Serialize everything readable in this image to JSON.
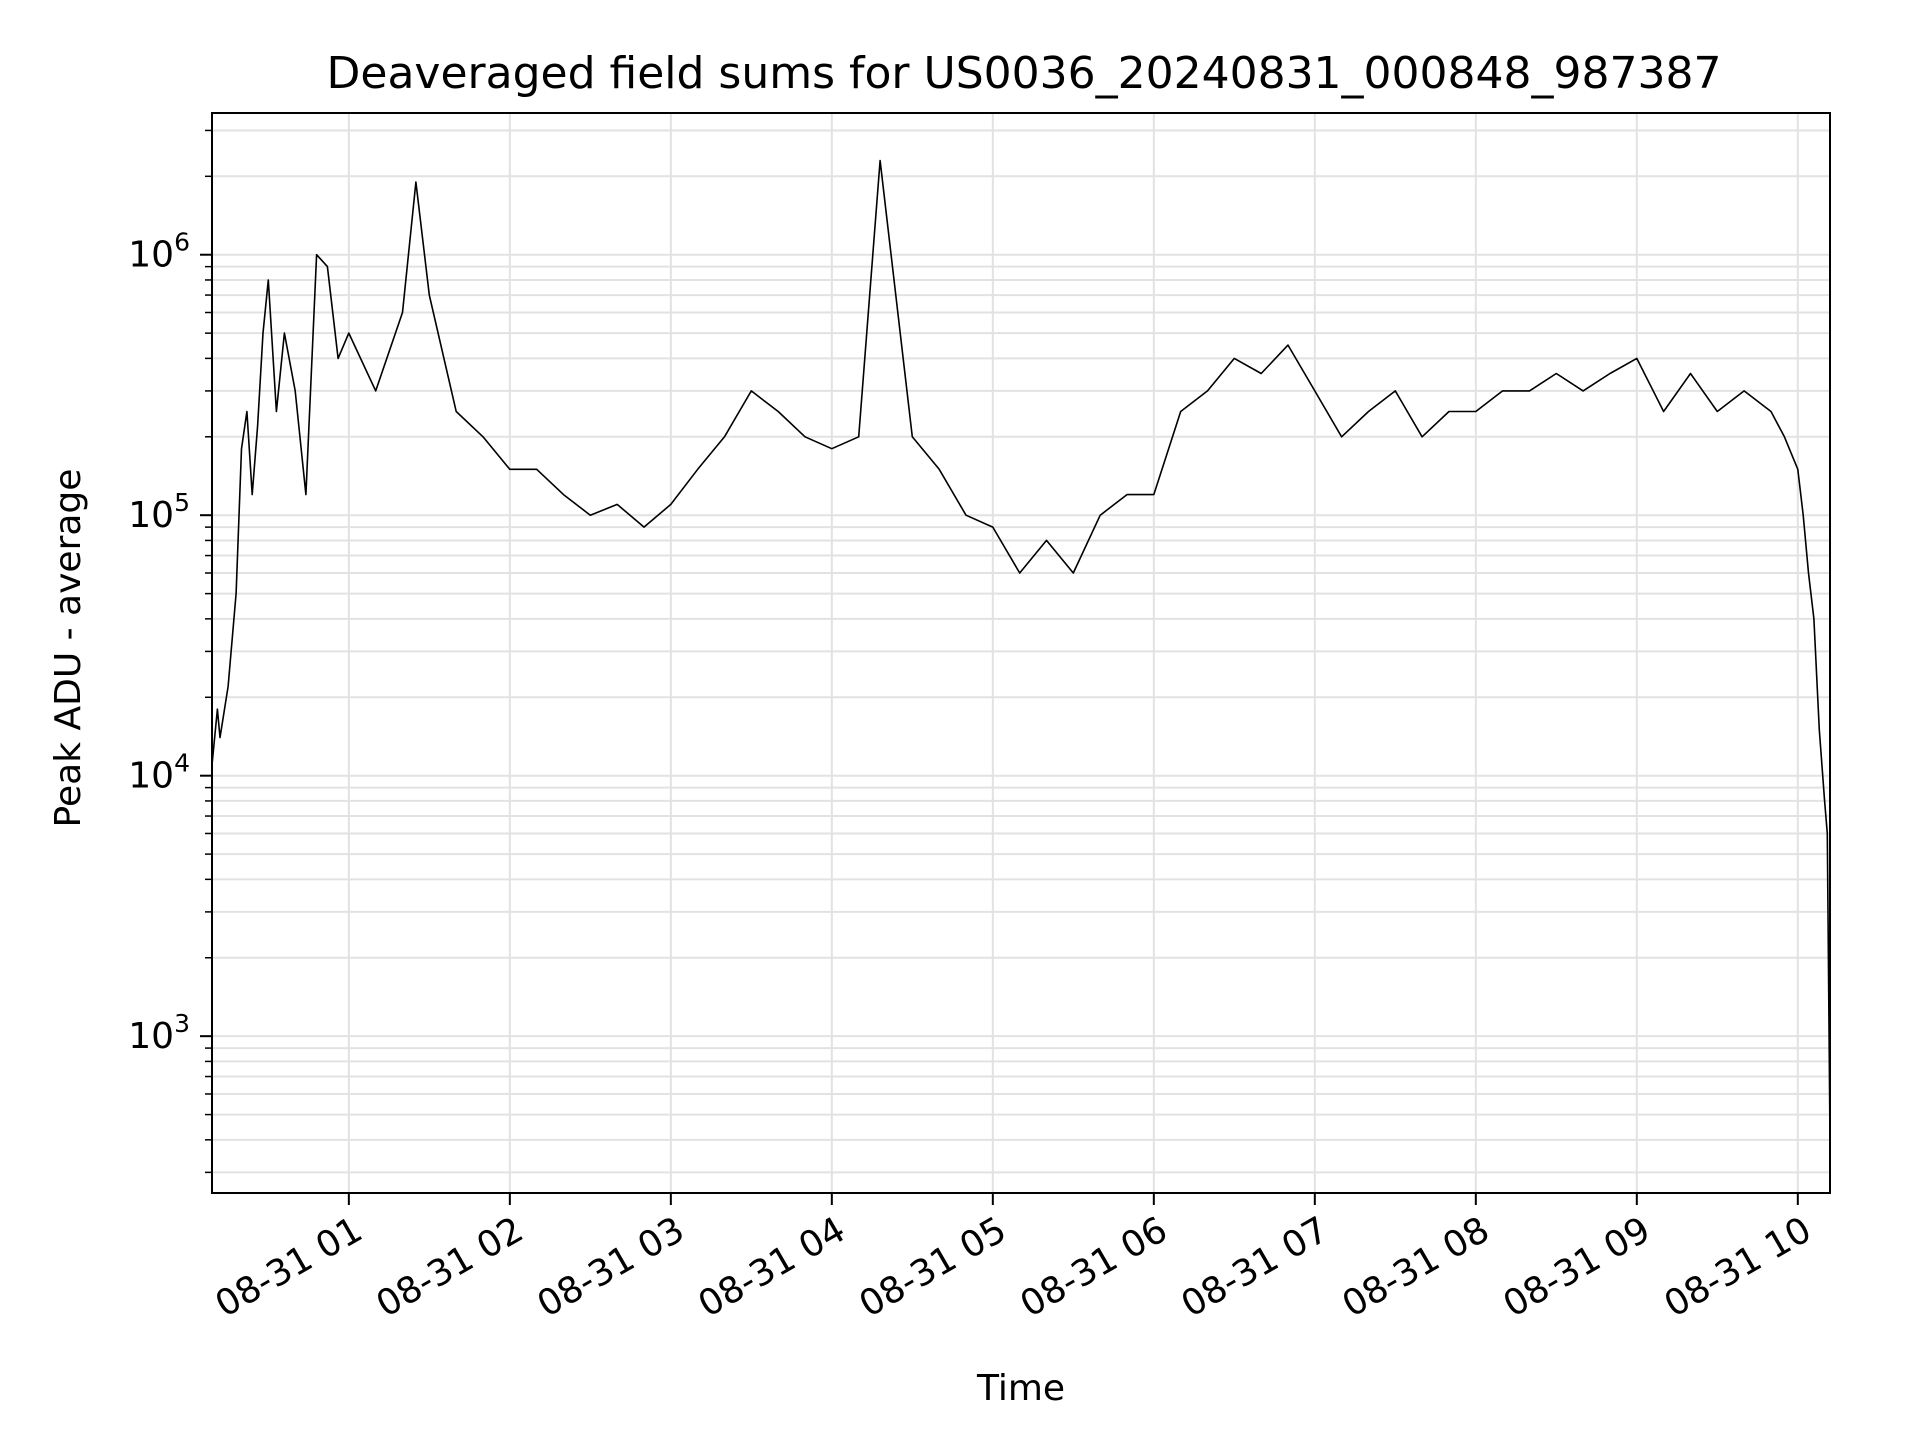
{
  "chart_data": {
    "type": "line",
    "title": "Deaveraged field sums for US0036_20240831_000848_987387",
    "xlabel": "Time",
    "ylabel": "Peak ADU - average",
    "yscale": "log",
    "ylim": [
      250,
      3500000
    ],
    "xlim": [
      "2024-08-31 00:09",
      "2024-08-31 10:12"
    ],
    "grid": true,
    "x_ticks": [
      {
        "value": "2024-08-31 01:00",
        "label": "08-31 01"
      },
      {
        "value": "2024-08-31 02:00",
        "label": "08-31 02"
      },
      {
        "value": "2024-08-31 03:00",
        "label": "08-31 03"
      },
      {
        "value": "2024-08-31 04:00",
        "label": "08-31 04"
      },
      {
        "value": "2024-08-31 05:00",
        "label": "08-31 05"
      },
      {
        "value": "2024-08-31 06:00",
        "label": "08-31 06"
      },
      {
        "value": "2024-08-31 07:00",
        "label": "08-31 07"
      },
      {
        "value": "2024-08-31 08:00",
        "label": "08-31 08"
      },
      {
        "value": "2024-08-31 09:00",
        "label": "08-31 09"
      },
      {
        "value": "2024-08-31 10:00",
        "label": "08-31 10"
      }
    ],
    "y_ticks": [
      {
        "value": 1000,
        "base": "10",
        "exp": "3"
      },
      {
        "value": 10000,
        "base": "10",
        "exp": "4"
      },
      {
        "value": 100000,
        "base": "10",
        "exp": "5"
      },
      {
        "value": 1000000,
        "base": "10",
        "exp": "6"
      }
    ],
    "series": [
      {
        "color": "#000000",
        "x": [
          "2024-08-31 00:09",
          "2024-08-31 00:11",
          "2024-08-31 00:12",
          "2024-08-31 00:15",
          "2024-08-31 00:18",
          "2024-08-31 00:20",
          "2024-08-31 00:22",
          "2024-08-31 00:24",
          "2024-08-31 00:26",
          "2024-08-31 00:28",
          "2024-08-31 00:30",
          "2024-08-31 00:33",
          "2024-08-31 00:36",
          "2024-08-31 00:40",
          "2024-08-31 00:44",
          "2024-08-31 00:48",
          "2024-08-31 00:52",
          "2024-08-31 00:56",
          "2024-08-31 01:00",
          "2024-08-31 01:10",
          "2024-08-31 01:20",
          "2024-08-31 01:25",
          "2024-08-31 01:30",
          "2024-08-31 01:40",
          "2024-08-31 01:50",
          "2024-08-31 02:00",
          "2024-08-31 02:10",
          "2024-08-31 02:20",
          "2024-08-31 02:30",
          "2024-08-31 02:40",
          "2024-08-31 02:50",
          "2024-08-31 03:00",
          "2024-08-31 03:10",
          "2024-08-31 03:20",
          "2024-08-31 03:30",
          "2024-08-31 03:40",
          "2024-08-31 03:50",
          "2024-08-31 04:00",
          "2024-08-31 04:10",
          "2024-08-31 04:18",
          "2024-08-31 04:30",
          "2024-08-31 04:40",
          "2024-08-31 04:50",
          "2024-08-31 05:00",
          "2024-08-31 05:10",
          "2024-08-31 05:20",
          "2024-08-31 05:30",
          "2024-08-31 05:40",
          "2024-08-31 05:50",
          "2024-08-31 06:00",
          "2024-08-31 06:10",
          "2024-08-31 06:20",
          "2024-08-31 06:30",
          "2024-08-31 06:40",
          "2024-08-31 06:50",
          "2024-08-31 07:00",
          "2024-08-31 07:10",
          "2024-08-31 07:20",
          "2024-08-31 07:30",
          "2024-08-31 07:40",
          "2024-08-31 07:50",
          "2024-08-31 08:00",
          "2024-08-31 08:10",
          "2024-08-31 08:20",
          "2024-08-31 08:30",
          "2024-08-31 08:40",
          "2024-08-31 08:50",
          "2024-08-31 09:00",
          "2024-08-31 09:10",
          "2024-08-31 09:20",
          "2024-08-31 09:30",
          "2024-08-31 09:40",
          "2024-08-31 09:50",
          "2024-08-31 09:55",
          "2024-08-31 10:00",
          "2024-08-31 10:02",
          "2024-08-31 10:04",
          "2024-08-31 10:06",
          "2024-08-31 10:08",
          "2024-08-31 10:10",
          "2024-08-31 10:11",
          "2024-08-31 10:12"
        ],
        "y": [
          11000,
          18000,
          14000,
          22000,
          50000,
          180000,
          250000,
          120000,
          220000,
          500000,
          800000,
          250000,
          500000,
          300000,
          120000,
          1000000,
          900000,
          400000,
          500000,
          300000,
          600000,
          1900000,
          700000,
          250000,
          200000,
          150000,
          150000,
          120000,
          100000,
          110000,
          90000,
          110000,
          150000,
          200000,
          300000,
          250000,
          200000,
          180000,
          200000,
          2300000,
          200000,
          150000,
          100000,
          90000,
          60000,
          80000,
          60000,
          100000,
          120000,
          120000,
          250000,
          300000,
          400000,
          350000,
          450000,
          300000,
          200000,
          250000,
          300000,
          200000,
          250000,
          250000,
          300000,
          300000,
          350000,
          300000,
          350000,
          400000,
          250000,
          350000,
          250000,
          300000,
          250000,
          200000,
          150000,
          100000,
          60000,
          40000,
          15000,
          8000,
          6000,
          400
        ]
      }
    ]
  }
}
